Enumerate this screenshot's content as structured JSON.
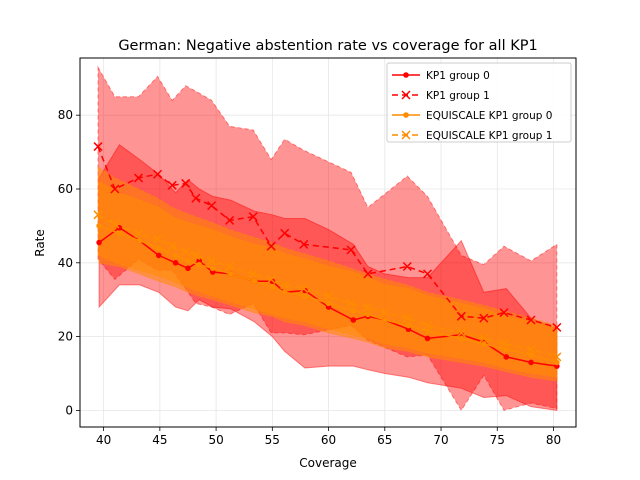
{
  "chart_data": {
    "type": "line",
    "title": "German: Negative abstention rate vs coverage for all KP1",
    "xlabel": "Coverage",
    "ylabel": "Rate",
    "xlim": [
      37.9,
      82.0
    ],
    "ylim": [
      -4.5,
      95.5
    ],
    "xticks": [
      40,
      45,
      50,
      55,
      60,
      65,
      70,
      75,
      80
    ],
    "yticks": [
      0,
      20,
      40,
      60,
      80
    ],
    "grid": true,
    "legend_position": "upper right",
    "series": [
      {
        "name": "KP1 group 0",
        "color": "#ff0000",
        "marker": "dot",
        "dash": "solid",
        "x": [
          39.6,
          41.4,
          43.2,
          44.9,
          46.4,
          47.5,
          48.5,
          49.7,
          51.3,
          53.4,
          55.0,
          56.1,
          57.9,
          60.0,
          62.2,
          63.5,
          65.0,
          67.1,
          68.8,
          71.8,
          73.8,
          75.8,
          78.0,
          80.3
        ],
        "y": [
          45.5,
          49.5,
          46.0,
          42.0,
          40.0,
          38.5,
          40.5,
          37.5,
          37.0,
          35.0,
          35.0,
          32.0,
          32.5,
          28.0,
          24.5,
          25.5,
          24.5,
          22.0,
          19.5,
          20.5,
          18.5,
          14.5,
          13.0,
          12.0
        ],
        "band_upper": [
          63.0,
          72.0,
          68.0,
          64.0,
          59.0,
          62.5,
          60.0,
          58.0,
          57.0,
          54.0,
          53.0,
          52.0,
          52.0,
          49.0,
          45.0,
          39.0,
          37.0,
          36.0,
          36.0,
          46.0,
          32.0,
          33.0,
          25.0,
          22.0
        ],
        "band_lower": [
          28.0,
          34.0,
          34.0,
          32.0,
          28.0,
          27.0,
          30.0,
          28.0,
          27.5,
          24.0,
          20.0,
          16.0,
          11.5,
          12.0,
          12.0,
          11.0,
          10.0,
          9.0,
          7.5,
          6.0,
          3.5,
          4.0,
          1.0,
          0.0
        ]
      },
      {
        "name": "KP1 group 1",
        "color": "#ff0000",
        "marker": "x",
        "dash": "dashed",
        "x": [
          39.5,
          41.0,
          43.1,
          44.8,
          46.1,
          47.3,
          48.2,
          49.6,
          51.2,
          53.3,
          54.9,
          56.1,
          57.8,
          62.0,
          63.5,
          67.0,
          68.8,
          71.8,
          73.8,
          75.6,
          78.0,
          80.3
        ],
        "y": [
          71.5,
          60.0,
          63.0,
          64.0,
          61.0,
          61.5,
          57.5,
          55.5,
          51.5,
          52.5,
          44.5,
          48.0,
          45.0,
          43.5,
          37.0,
          39.0,
          37.0,
          25.5,
          25.0,
          26.5,
          24.5,
          22.5
        ],
        "band_upper": [
          93.0,
          85.0,
          85.0,
          90.5,
          84.0,
          88.0,
          86.5,
          84.0,
          77.0,
          76.0,
          68.0,
          73.5,
          70.5,
          64.5,
          55.0,
          63.5,
          58.0,
          42.0,
          39.5,
          44.5,
          40.5,
          45.0
        ],
        "band_lower": [
          41.0,
          35.5,
          41.0,
          38.0,
          38.0,
          33.0,
          29.0,
          28.0,
          26.0,
          29.0,
          21.0,
          21.0,
          20.5,
          23.0,
          19.0,
          14.5,
          15.0,
          0.0,
          9.5,
          0.0,
          2.0,
          0.5
        ]
      },
      {
        "name": "EQUISCALE KP1 group 0",
        "color": "#ff8c00",
        "marker": "dot",
        "dash": "solid",
        "x": [
          39.6,
          41.4,
          43.2,
          44.9,
          46.4,
          47.5,
          48.5,
          49.7,
          51.3,
          53.4,
          55.0,
          56.1,
          57.9,
          60.0,
          62.2,
          63.5,
          65.0,
          67.1,
          68.8,
          71.8,
          73.8,
          75.8,
          78.0,
          80.3
        ],
        "y": [
          50.0,
          48.0,
          46.0,
          44.0,
          42.0,
          40.5,
          39.5,
          38.5,
          37.0,
          35.0,
          33.5,
          32.0,
          31.0,
          29.0,
          27.0,
          26.0,
          24.5,
          23.0,
          21.5,
          19.5,
          18.0,
          16.5,
          15.0,
          13.0
        ],
        "band_upper": [
          62.0,
          59.0,
          57.0,
          55.0,
          52.0,
          51.0,
          50.0,
          49.0,
          47.0,
          45.0,
          44.0,
          42.5,
          41.0,
          39.0,
          37.5,
          36.0,
          34.0,
          33.0,
          31.0,
          29.0,
          27.5,
          25.5,
          24.0,
          22.0
        ],
        "band_lower": [
          40.0,
          39.0,
          37.0,
          35.0,
          33.5,
          32.0,
          31.0,
          30.0,
          28.5,
          26.5,
          25.5,
          24.0,
          23.0,
          21.0,
          19.5,
          18.5,
          17.0,
          16.0,
          14.5,
          13.0,
          12.0,
          10.5,
          9.0,
          8.0
        ]
      },
      {
        "name": "EQUISCALE KP1 group 1",
        "color": "#ff8c00",
        "marker": "x",
        "dash": "dashed",
        "x": [
          39.5,
          41.0,
          43.1,
          44.8,
          46.1,
          47.3,
          48.2,
          49.6,
          51.2,
          53.3,
          54.9,
          56.1,
          57.8,
          60.0,
          62.0,
          63.5,
          65.0,
          67.0,
          68.8,
          71.8,
          73.8,
          75.6,
          78.0,
          80.3
        ],
        "y": [
          53.0,
          50.5,
          48.0,
          46.5,
          44.5,
          43.0,
          42.0,
          40.5,
          39.0,
          37.0,
          35.5,
          34.0,
          33.0,
          31.0,
          29.0,
          28.0,
          26.5,
          25.0,
          23.0,
          21.0,
          19.5,
          18.0,
          16.5,
          14.5
        ],
        "band_upper": [
          66.0,
          63.0,
          60.0,
          57.5,
          55.0,
          53.5,
          52.5,
          51.0,
          49.0,
          47.0,
          45.5,
          44.0,
          42.5,
          40.5,
          38.5,
          37.0,
          35.5,
          34.0,
          32.0,
          30.0,
          28.5,
          27.0,
          25.0,
          23.0
        ],
        "band_lower": [
          42.0,
          40.0,
          38.0,
          36.5,
          35.0,
          33.5,
          32.5,
          31.0,
          29.5,
          27.5,
          26.0,
          25.0,
          24.0,
          22.0,
          20.5,
          19.5,
          18.0,
          17.0,
          15.5,
          14.0,
          13.0,
          11.5,
          10.0,
          9.0
        ]
      }
    ]
  }
}
